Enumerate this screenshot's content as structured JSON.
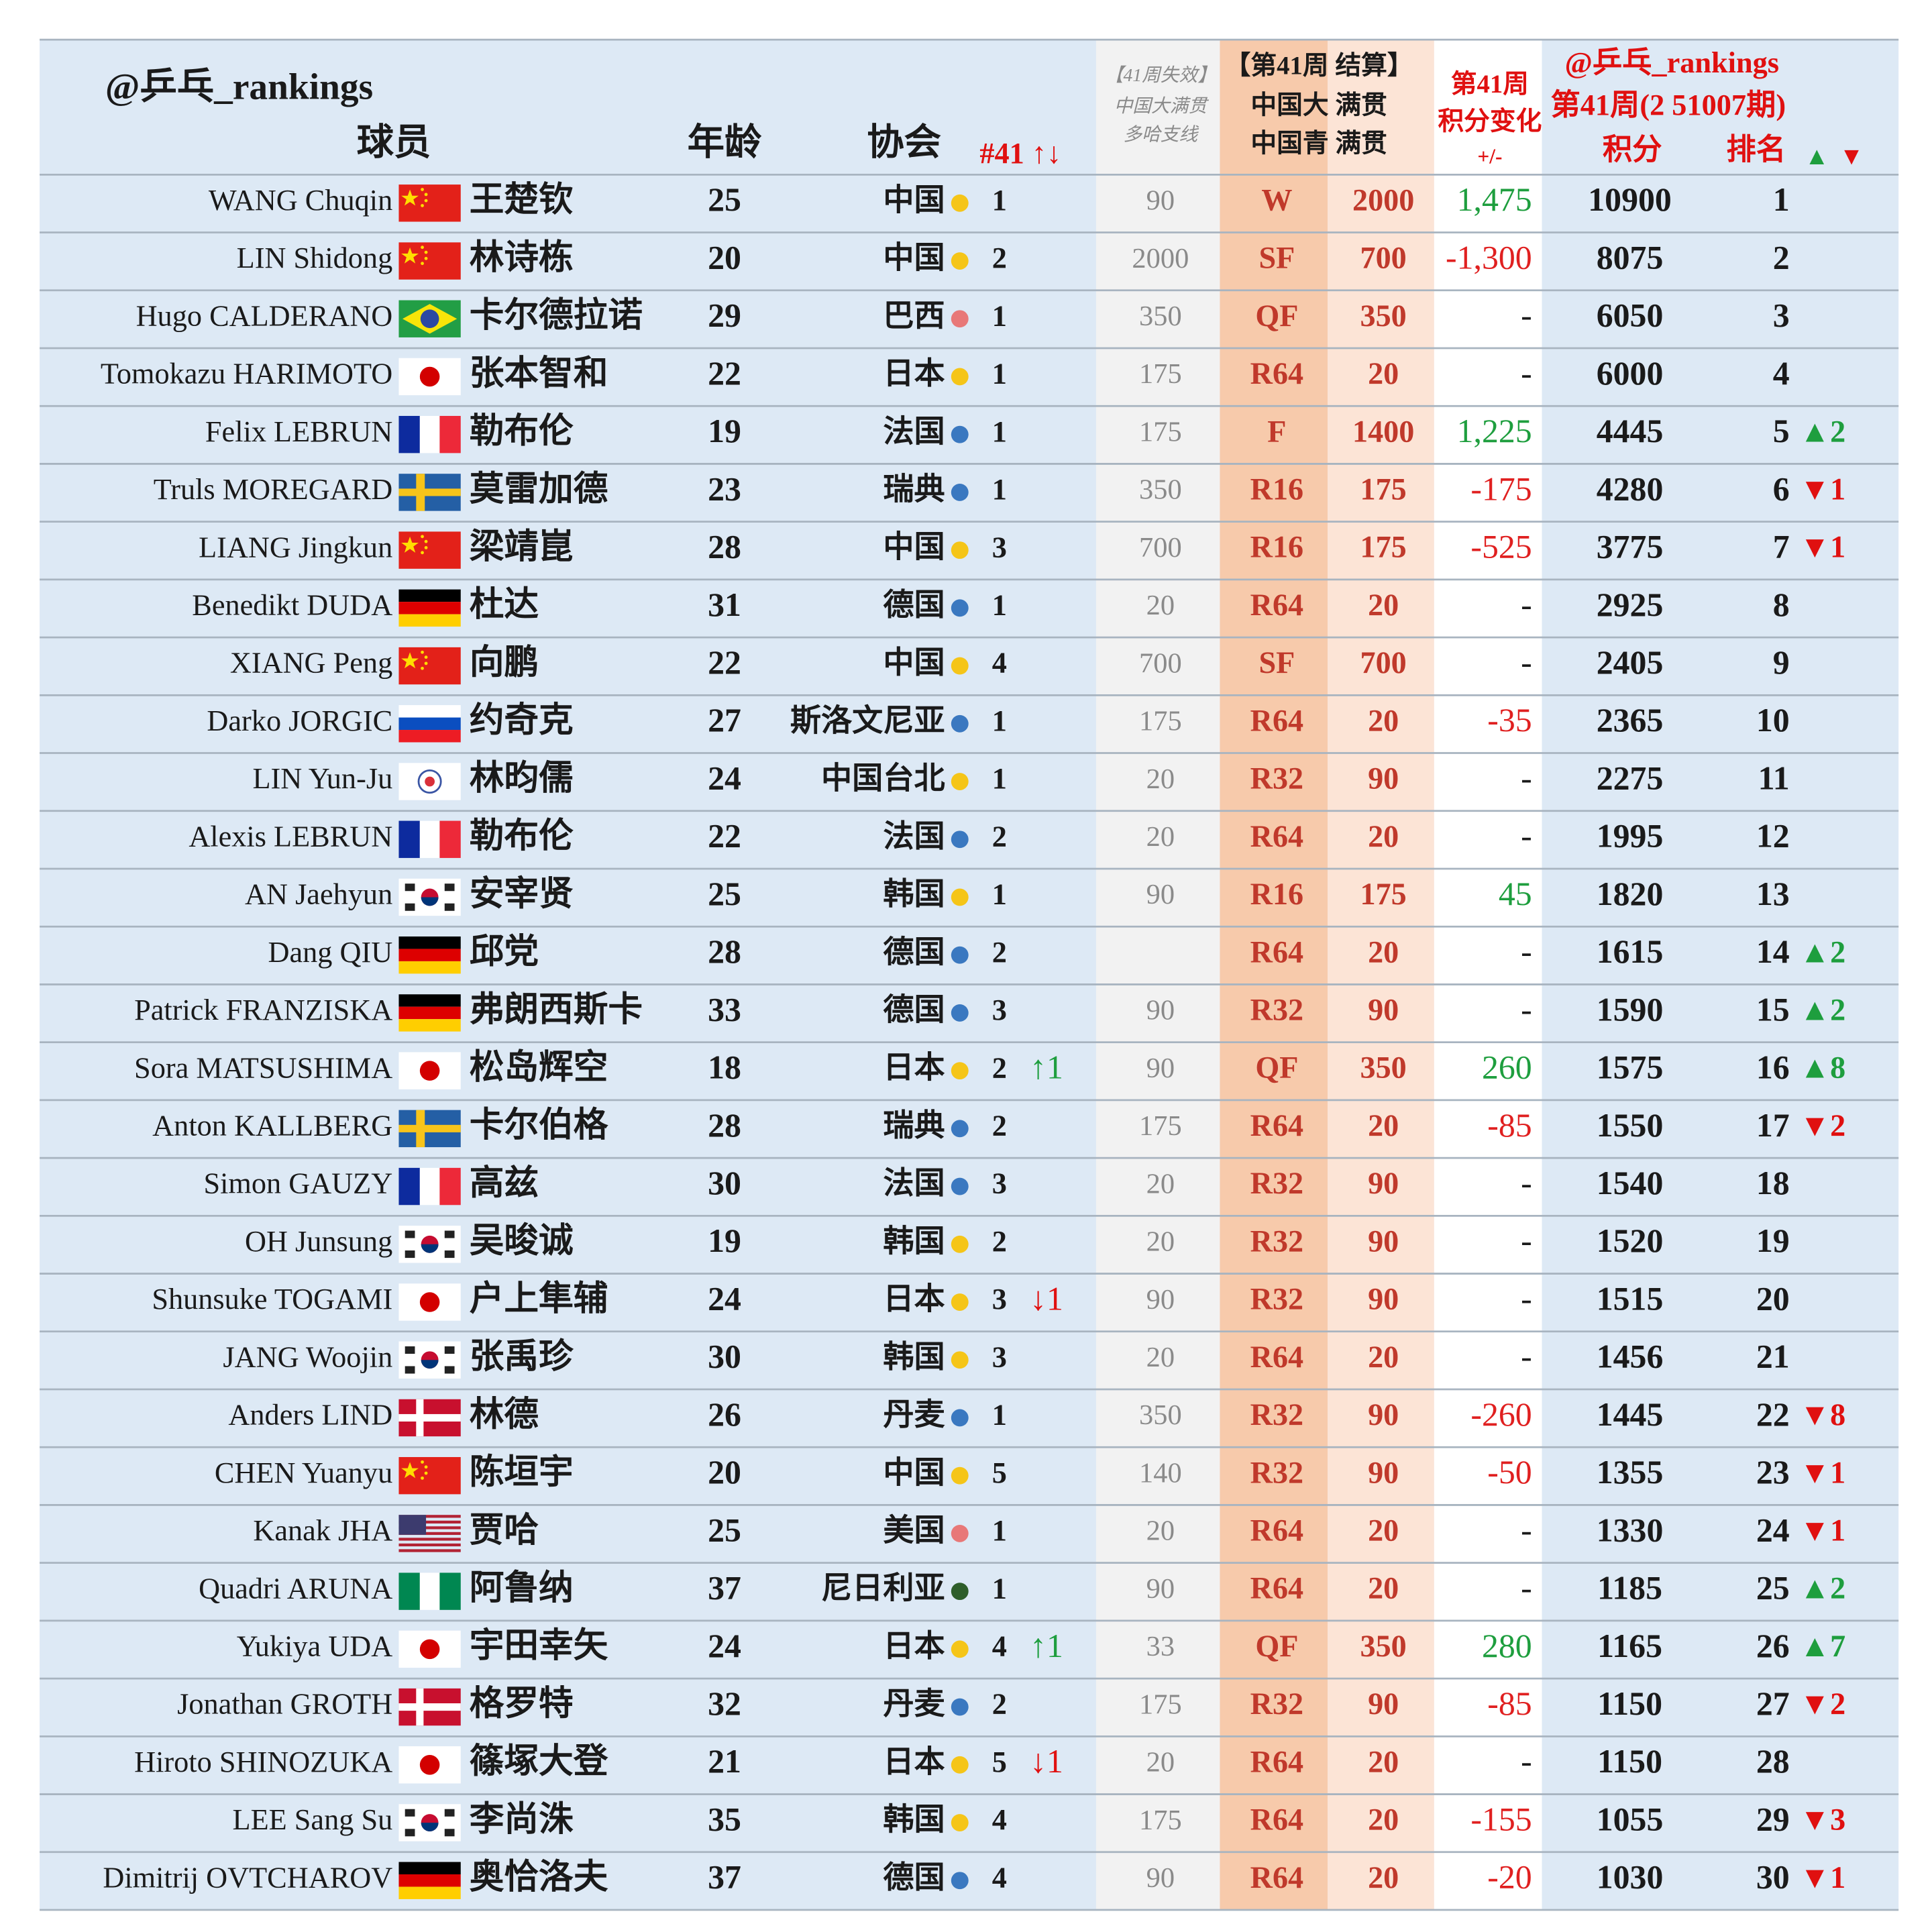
{
  "header": {
    "brand": "@乒乓_rankings",
    "player": "球员",
    "age": "年龄",
    "assoc": "协会",
    "nat": "#41 ↑↓",
    "expired": [
      "【41周失效】",
      "中国大满贯",
      "多哈支线"
    ],
    "settle": [
      "【第41周 结算】",
      "中国大 满贯",
      "中国青 满贯"
    ],
    "change": [
      "第41周",
      "积分变化",
      "+/-"
    ],
    "brand2": "@乒乓_rankings",
    "period": "第41周(2 51007期)",
    "points": "积分",
    "rank": "排名",
    "up": "▲",
    "down": "▼"
  },
  "colors": {
    "up": "#1e9e3e",
    "down": "#e01010",
    "pos": "#1e9e3e",
    "neg": "#e02020"
  },
  "table": {
    "rows": [
      {
        "en": "WANG Chuqin",
        "zh": "王楚钦",
        "age": 25,
        "assoc": "中国",
        "dot": "#f5c518",
        "nat": 1,
        "exp": 90,
        "res": "W",
        "pts": 2000,
        "chg": "1,475",
        "total": 10900,
        "rank": 1
      },
      {
        "en": "LIN Shidong",
        "zh": "林诗栋",
        "age": 20,
        "assoc": "中国",
        "dot": "#f5c518",
        "nat": 2,
        "exp": 2000,
        "res": "SF",
        "pts": 700,
        "chg": "-1,300",
        "total": 8075,
        "rank": 2
      },
      {
        "en": "Hugo CALDERANO",
        "zh": "卡尔德拉诺",
        "age": 29,
        "assoc": "巴西",
        "dot": "#e87878",
        "nat": 1,
        "exp": 350,
        "res": "QF",
        "pts": 350,
        "chg": "-",
        "total": 6050,
        "rank": 3
      },
      {
        "en": "Tomokazu HARIMOTO",
        "zh": "张本智和",
        "age": 22,
        "assoc": "日本",
        "dot": "#f5c518",
        "nat": 1,
        "exp": 175,
        "res": "R64",
        "pts": 20,
        "chg": "-",
        "total": 6000,
        "rank": 4
      },
      {
        "en": "Felix LEBRUN",
        "zh": "勒布伦",
        "age": 19,
        "assoc": "法国",
        "dot": "#3a78c0",
        "nat": 1,
        "exp": 175,
        "res": "F",
        "pts": 1400,
        "chg": "1,225",
        "total": 4445,
        "rank": 5,
        "rank_move": "▲2",
        "rank_move_color": "#1e9e3e"
      },
      {
        "en": "Truls MOREGARD",
        "zh": "莫雷加德",
        "age": 23,
        "assoc": "瑞典",
        "dot": "#3a78c0",
        "nat": 1,
        "exp": 350,
        "res": "R16",
        "pts": 175,
        "chg": "-175",
        "total": 4280,
        "rank": 6,
        "rank_move": "▼1",
        "rank_move_color": "#e01010"
      },
      {
        "en": "LIANG Jingkun",
        "zh": "梁靖崑",
        "age": 28,
        "assoc": "中国",
        "dot": "#f5c518",
        "nat": 3,
        "exp": 700,
        "res": "R16",
        "pts": 175,
        "chg": "-525",
        "total": 3775,
        "rank": 7,
        "rank_move": "▼1",
        "rank_move_color": "#e01010"
      },
      {
        "en": "Benedikt DUDA",
        "zh": "杜达",
        "age": 31,
        "assoc": "德国",
        "dot": "#3a78c0",
        "nat": 1,
        "exp": 20,
        "res": "R64",
        "pts": 20,
        "chg": "-",
        "total": 2925,
        "rank": 8
      },
      {
        "en": "XIANG Peng",
        "zh": "向鹏",
        "age": 22,
        "assoc": "中国",
        "dot": "#f5c518",
        "nat": 4,
        "exp": 700,
        "res": "SF",
        "pts": 700,
        "chg": "-",
        "total": 2405,
        "rank": 9
      },
      {
        "en": "Darko JORGIC",
        "zh": "约奇克",
        "age": 27,
        "assoc": "斯洛文尼亚",
        "dot": "#3a78c0",
        "nat": 1,
        "exp": 175,
        "res": "R64",
        "pts": 20,
        "chg": "-35",
        "total": 2365,
        "rank": 10
      },
      {
        "en": "LIN Yun-Ju",
        "zh": "林昀儒",
        "age": 24,
        "assoc": "中国台北",
        "dot": "#f5c518",
        "nat": 1,
        "exp": 20,
        "res": "R32",
        "pts": 90,
        "chg": "-",
        "total": 2275,
        "rank": 11
      },
      {
        "en": "Alexis LEBRUN",
        "zh": "勒布伦",
        "age": 22,
        "assoc": "法国",
        "dot": "#3a78c0",
        "nat": 2,
        "exp": 20,
        "res": "R64",
        "pts": 20,
        "chg": "-",
        "total": 1995,
        "rank": 12
      },
      {
        "en": "AN Jaehyun",
        "zh": "安宰贤",
        "age": 25,
        "assoc": "韩国",
        "dot": "#f5c518",
        "nat": 1,
        "exp": 90,
        "res": "R16",
        "pts": 175,
        "chg": "45",
        "total": 1820,
        "rank": 13
      },
      {
        "en": "Dang QIU",
        "zh": "邱党",
        "age": 28,
        "assoc": "德国",
        "dot": "#3a78c0",
        "nat": 2,
        "exp": null,
        "res": "R64",
        "pts": 20,
        "chg": "-",
        "total": 1615,
        "rank": 14,
        "rank_move": "▲2",
        "rank_move_color": "#1e9e3e"
      },
      {
        "en": "Patrick FRANZISKA",
        "zh": "弗朗西斯卡",
        "age": 33,
        "assoc": "德国",
        "dot": "#3a78c0",
        "nat": 3,
        "exp": 90,
        "res": "R32",
        "pts": 90,
        "chg": "-",
        "total": 1590,
        "rank": 15,
        "rank_move": "▲2",
        "rank_move_color": "#1e9e3e"
      },
      {
        "en": "Sora MATSUSHIMA",
        "zh": "松岛辉空",
        "age": 18,
        "assoc": "日本",
        "dot": "#f5c518",
        "nat": 2,
        "nat_move": "↑1",
        "nat_move_color": "#1e9e3e",
        "exp": 90,
        "res": "QF",
        "pts": 350,
        "chg": "260",
        "total": 1575,
        "rank": 16,
        "rank_move": "▲8",
        "rank_move_color": "#1e9e3e"
      },
      {
        "en": "Anton KALLBERG",
        "zh": "卡尔伯格",
        "age": 28,
        "assoc": "瑞典",
        "dot": "#3a78c0",
        "nat": 2,
        "exp": 175,
        "res": "R64",
        "pts": 20,
        "chg": "-85",
        "total": 1550,
        "rank": 17,
        "rank_move": "▼2",
        "rank_move_color": "#e01010"
      },
      {
        "en": "Simon GAUZY",
        "zh": "高兹",
        "age": 30,
        "assoc": "法国",
        "dot": "#3a78c0",
        "nat": 3,
        "exp": 20,
        "res": "R32",
        "pts": 90,
        "chg": "-",
        "total": 1540,
        "rank": 18
      },
      {
        "en": "OH Junsung",
        "zh": "吴晙诚",
        "age": 19,
        "assoc": "韩国",
        "dot": "#f5c518",
        "nat": 2,
        "exp": 20,
        "res": "R32",
        "pts": 90,
        "chg": "-",
        "total": 1520,
        "rank": 19
      },
      {
        "en": "Shunsuke TOGAMI",
        "zh": "户上隼辅",
        "age": 24,
        "assoc": "日本",
        "dot": "#f5c518",
        "nat": 3,
        "nat_move": "↓1",
        "nat_move_color": "#e01010",
        "exp": 90,
        "res": "R32",
        "pts": 90,
        "chg": "-",
        "total": 1515,
        "rank": 20
      },
      {
        "en": "JANG Woojin",
        "zh": "张禹珍",
        "age": 30,
        "assoc": "韩国",
        "dot": "#f5c518",
        "nat": 3,
        "exp": 20,
        "res": "R64",
        "pts": 20,
        "chg": "-",
        "total": 1456,
        "rank": 21
      },
      {
        "en": "Anders LIND",
        "zh": "林德",
        "age": 26,
        "assoc": "丹麦",
        "dot": "#3a78c0",
        "nat": 1,
        "exp": 350,
        "res": "R32",
        "pts": 90,
        "chg": "-260",
        "total": 1445,
        "rank": 22,
        "rank_move": "▼8",
        "rank_move_color": "#e01010"
      },
      {
        "en": "CHEN Yuanyu",
        "zh": "陈垣宇",
        "age": 20,
        "assoc": "中国",
        "dot": "#f5c518",
        "nat": 5,
        "exp": 140,
        "res": "R32",
        "pts": 90,
        "chg": "-50",
        "total": 1355,
        "rank": 23,
        "rank_move": "▼1",
        "rank_move_color": "#e01010"
      },
      {
        "en": "Kanak JHA",
        "zh": "贾哈",
        "age": 25,
        "assoc": "美国",
        "dot": "#e87878",
        "nat": 1,
        "exp": 20,
        "res": "R64",
        "pts": 20,
        "chg": "-",
        "total": 1330,
        "rank": 24,
        "rank_move": "▼1",
        "rank_move_color": "#e01010"
      },
      {
        "en": "Quadri ARUNA",
        "zh": "阿鲁纳",
        "age": 37,
        "assoc": "尼日利亚",
        "dot": "#2e5e2a",
        "nat": 1,
        "exp": 90,
        "res": "R64",
        "pts": 20,
        "chg": "-",
        "total": 1185,
        "rank": 25,
        "rank_move": "▲2",
        "rank_move_color": "#1e9e3e"
      },
      {
        "en": "Yukiya UDA",
        "zh": "宇田幸矢",
        "age": 24,
        "assoc": "日本",
        "dot": "#f5c518",
        "nat": 4,
        "nat_move": "↑1",
        "nat_move_color": "#1e9e3e",
        "exp": 33,
        "res": "QF",
        "pts": 350,
        "chg": "280",
        "total": 1165,
        "rank": 26,
        "rank_move": "▲7",
        "rank_move_color": "#1e9e3e"
      },
      {
        "en": "Jonathan GROTH",
        "zh": "格罗特",
        "age": 32,
        "assoc": "丹麦",
        "dot": "#3a78c0",
        "nat": 2,
        "exp": 175,
        "res": "R32",
        "pts": 90,
        "chg": "-85",
        "total": 1150,
        "rank": 27,
        "rank_move": "▼2",
        "rank_move_color": "#e01010"
      },
      {
        "en": "Hiroto SHINOZUKA",
        "zh": "篠塚大登",
        "age": 21,
        "assoc": "日本",
        "dot": "#f5c518",
        "nat": 5,
        "nat_move": "↓1",
        "nat_move_color": "#e01010",
        "exp": 20,
        "res": "R64",
        "pts": 20,
        "chg": "-",
        "total": 1150,
        "rank": 28
      },
      {
        "en": "LEE Sang Su",
        "zh": "李尚洙",
        "age": 35,
        "assoc": "韩国",
        "dot": "#f5c518",
        "nat": 4,
        "exp": 175,
        "res": "R64",
        "pts": 20,
        "chg": "-155",
        "total": 1055,
        "rank": 29,
        "rank_move": "▼3",
        "rank_move_color": "#e01010"
      },
      {
        "en": "Dimitrij OVTCHAROV",
        "zh": "奥恰洛夫",
        "age": 37,
        "assoc": "德国",
        "dot": "#3a78c0",
        "nat": 4,
        "exp": 90,
        "res": "R64",
        "pts": 20,
        "chg": "-20",
        "total": 1030,
        "rank": 30,
        "rank_move": "▼1",
        "rank_move_color": "#e01010"
      }
    ]
  }
}
